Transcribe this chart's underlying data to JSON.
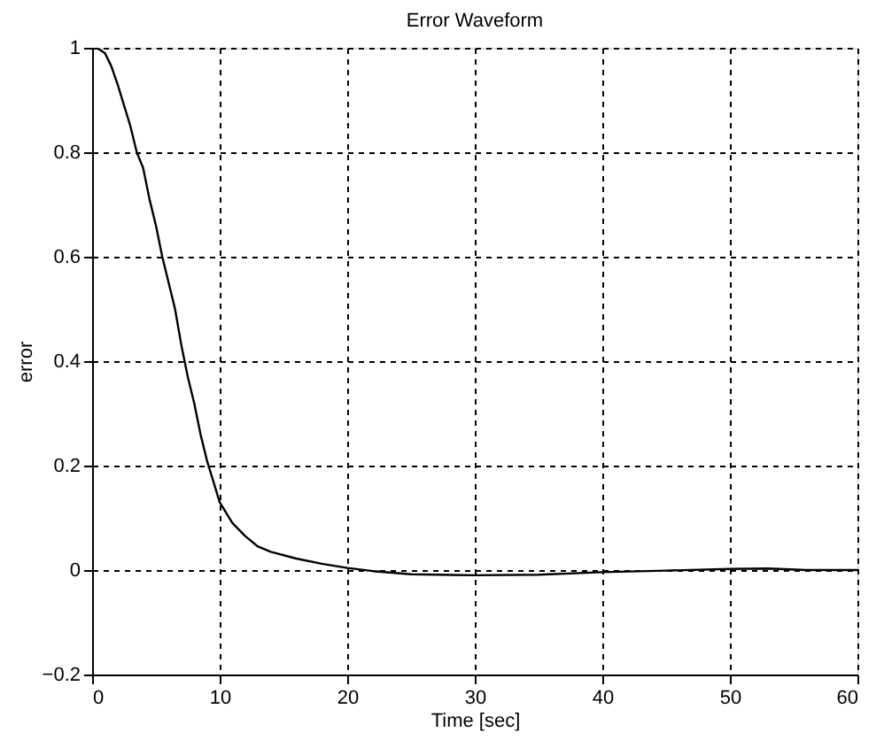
{
  "chart_data": {
    "type": "line",
    "title": "Error Waveform",
    "xlabel": "Time [sec]",
    "ylabel": "error",
    "x": [
      0,
      0.5,
      1,
      1.5,
      2,
      2.5,
      3,
      3.5,
      4,
      4.5,
      5,
      5.5,
      6,
      6.5,
      7,
      7.5,
      8,
      8.5,
      9,
      9.5,
      10,
      10.5,
      11,
      12,
      13,
      14,
      16,
      18,
      20,
      22,
      25,
      30,
      35,
      40,
      45,
      50,
      53,
      56,
      60
    ],
    "series": [
      {
        "color": "#000000",
        "values": [
          1,
          0.998,
          0.99,
          0.965,
          0.93,
          0.89,
          0.85,
          0.8,
          0.77,
          0.71,
          0.66,
          0.6,
          0.55,
          0.5,
          0.43,
          0.37,
          0.32,
          0.26,
          0.21,
          0.17,
          0.13,
          0.11,
          0.09,
          0.065,
          0.045,
          0.035,
          0.022,
          0.012,
          0.004,
          -0.002,
          -0.008,
          -0.01,
          -0.009,
          -0.004,
          -0.001,
          0.002,
          0.003,
          0,
          0
        ]
      }
    ],
    "xlim": [
      0,
      60
    ],
    "xticks": [
      0,
      10,
      20,
      30,
      40,
      50,
      60
    ],
    "ylim": [
      -0.2,
      1
    ],
    "yticks": [
      -0.2,
      0,
      0.2,
      0.4,
      0.6,
      0.8,
      1
    ],
    "grid": true,
    "line_style": "solid",
    "marker": "none"
  }
}
